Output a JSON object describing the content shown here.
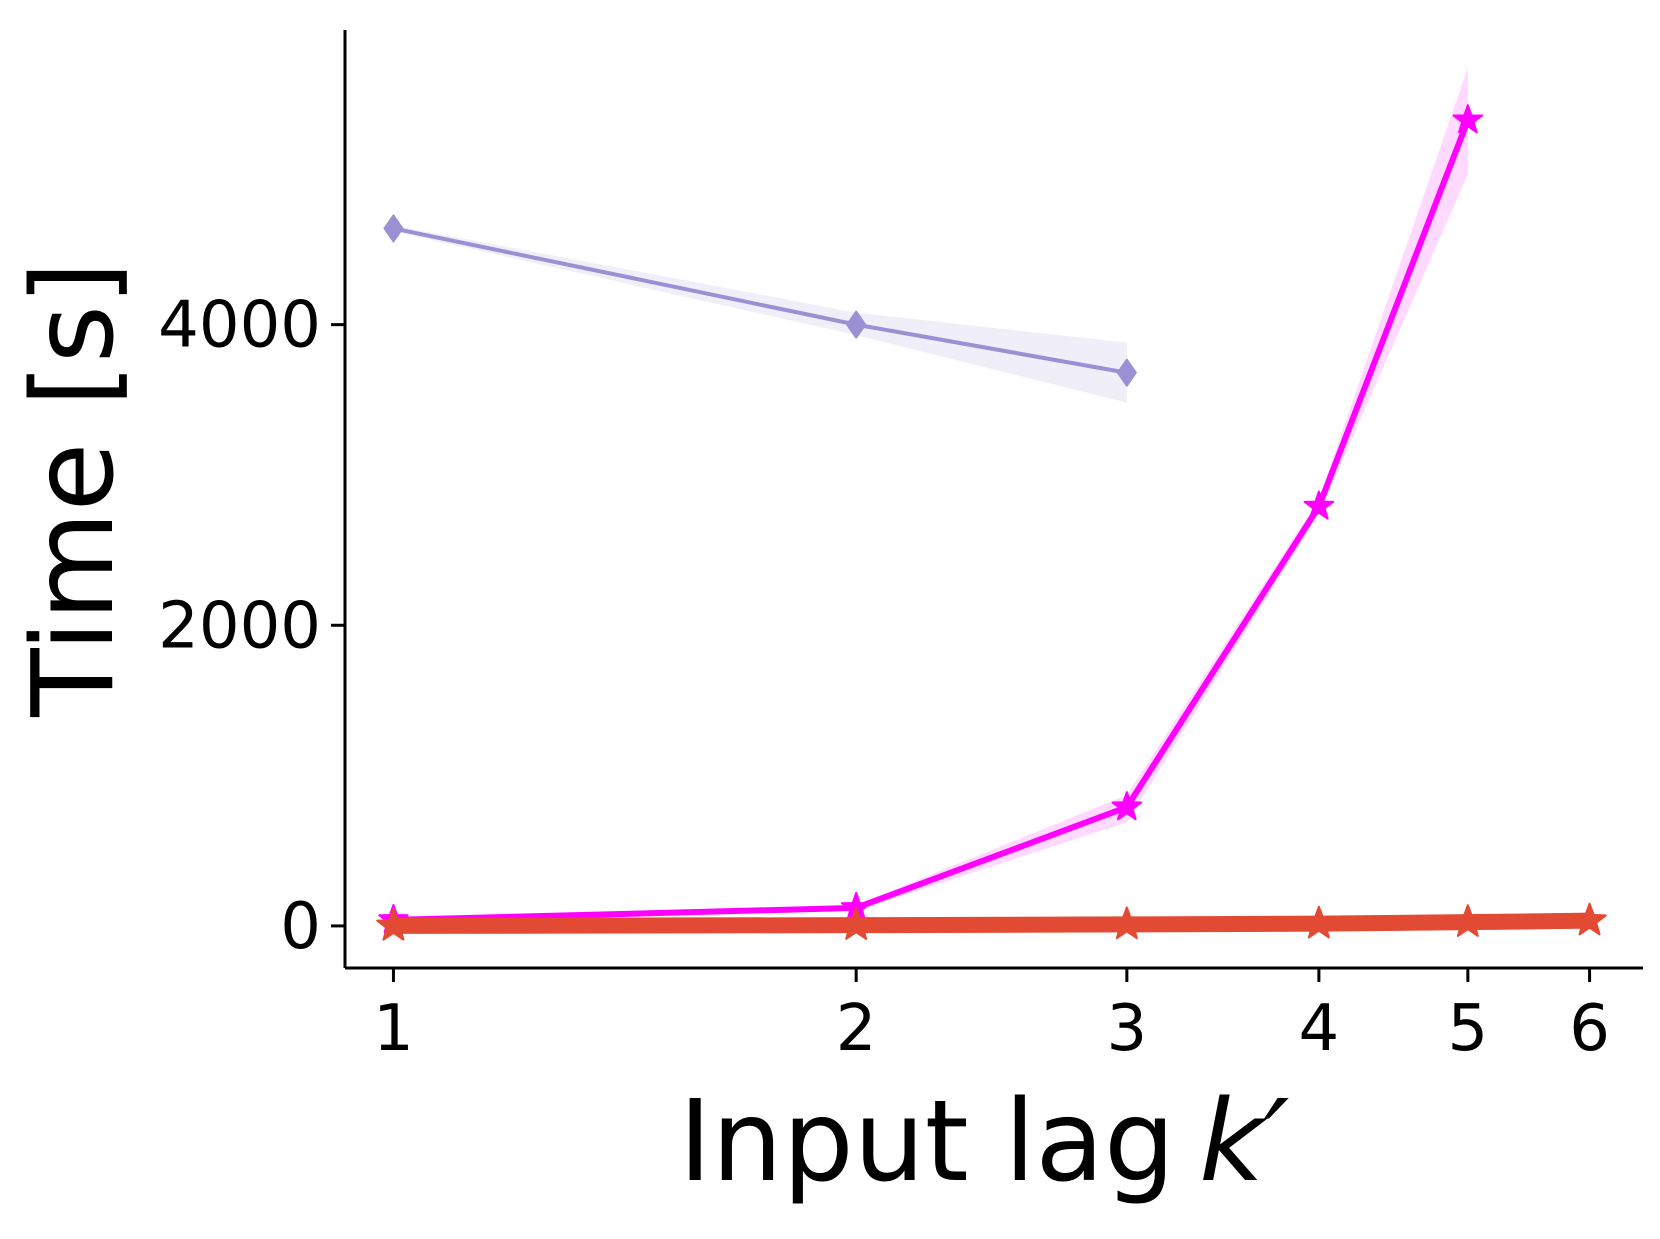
{
  "chart_data": {
    "type": "line",
    "xlabel": "Input lag",
    "xlabel_symbol": "k′",
    "ylabel": "Time [s]",
    "x_scale": "log",
    "xlim": [
      0.93,
      6.5
    ],
    "ylim": [
      -280,
      5960
    ],
    "x_ticks": [
      1,
      2,
      3,
      4,
      5,
      6
    ],
    "x_tick_labels": [
      "1",
      "2",
      "3",
      "4",
      "5",
      "6"
    ],
    "y_ticks": [
      0,
      2000,
      4000
    ],
    "y_tick_labels": [
      "0",
      "2000",
      "4000"
    ],
    "grid": false,
    "legend": "none",
    "series": [
      {
        "color": "#9b90d3",
        "marker": "diamond",
        "x": [
          1,
          2,
          3
        ],
        "y": [
          4640,
          4000,
          3680
        ],
        "y_low": [
          4620,
          3930,
          3480
        ],
        "y_high": [
          4660,
          4080,
          3880
        ]
      },
      {
        "color": "#ff00ff",
        "marker": "star",
        "x": [
          1,
          2,
          3,
          4,
          5
        ],
        "y": [
          40,
          120,
          790,
          2790,
          5360
        ],
        "y_low": [
          30,
          100,
          690,
          2740,
          5000
        ],
        "y_high": [
          50,
          140,
          870,
          2840,
          5710
        ]
      },
      {
        "color": "#e34a33",
        "marker": "star",
        "x": [
          1,
          2,
          3,
          4,
          5,
          6
        ],
        "y": [
          0,
          5,
          10,
          15,
          25,
          35
        ],
        "y_low": [
          0,
          0,
          5,
          10,
          15,
          25
        ],
        "y_high": [
          5,
          10,
          15,
          20,
          35,
          45
        ]
      }
    ]
  }
}
